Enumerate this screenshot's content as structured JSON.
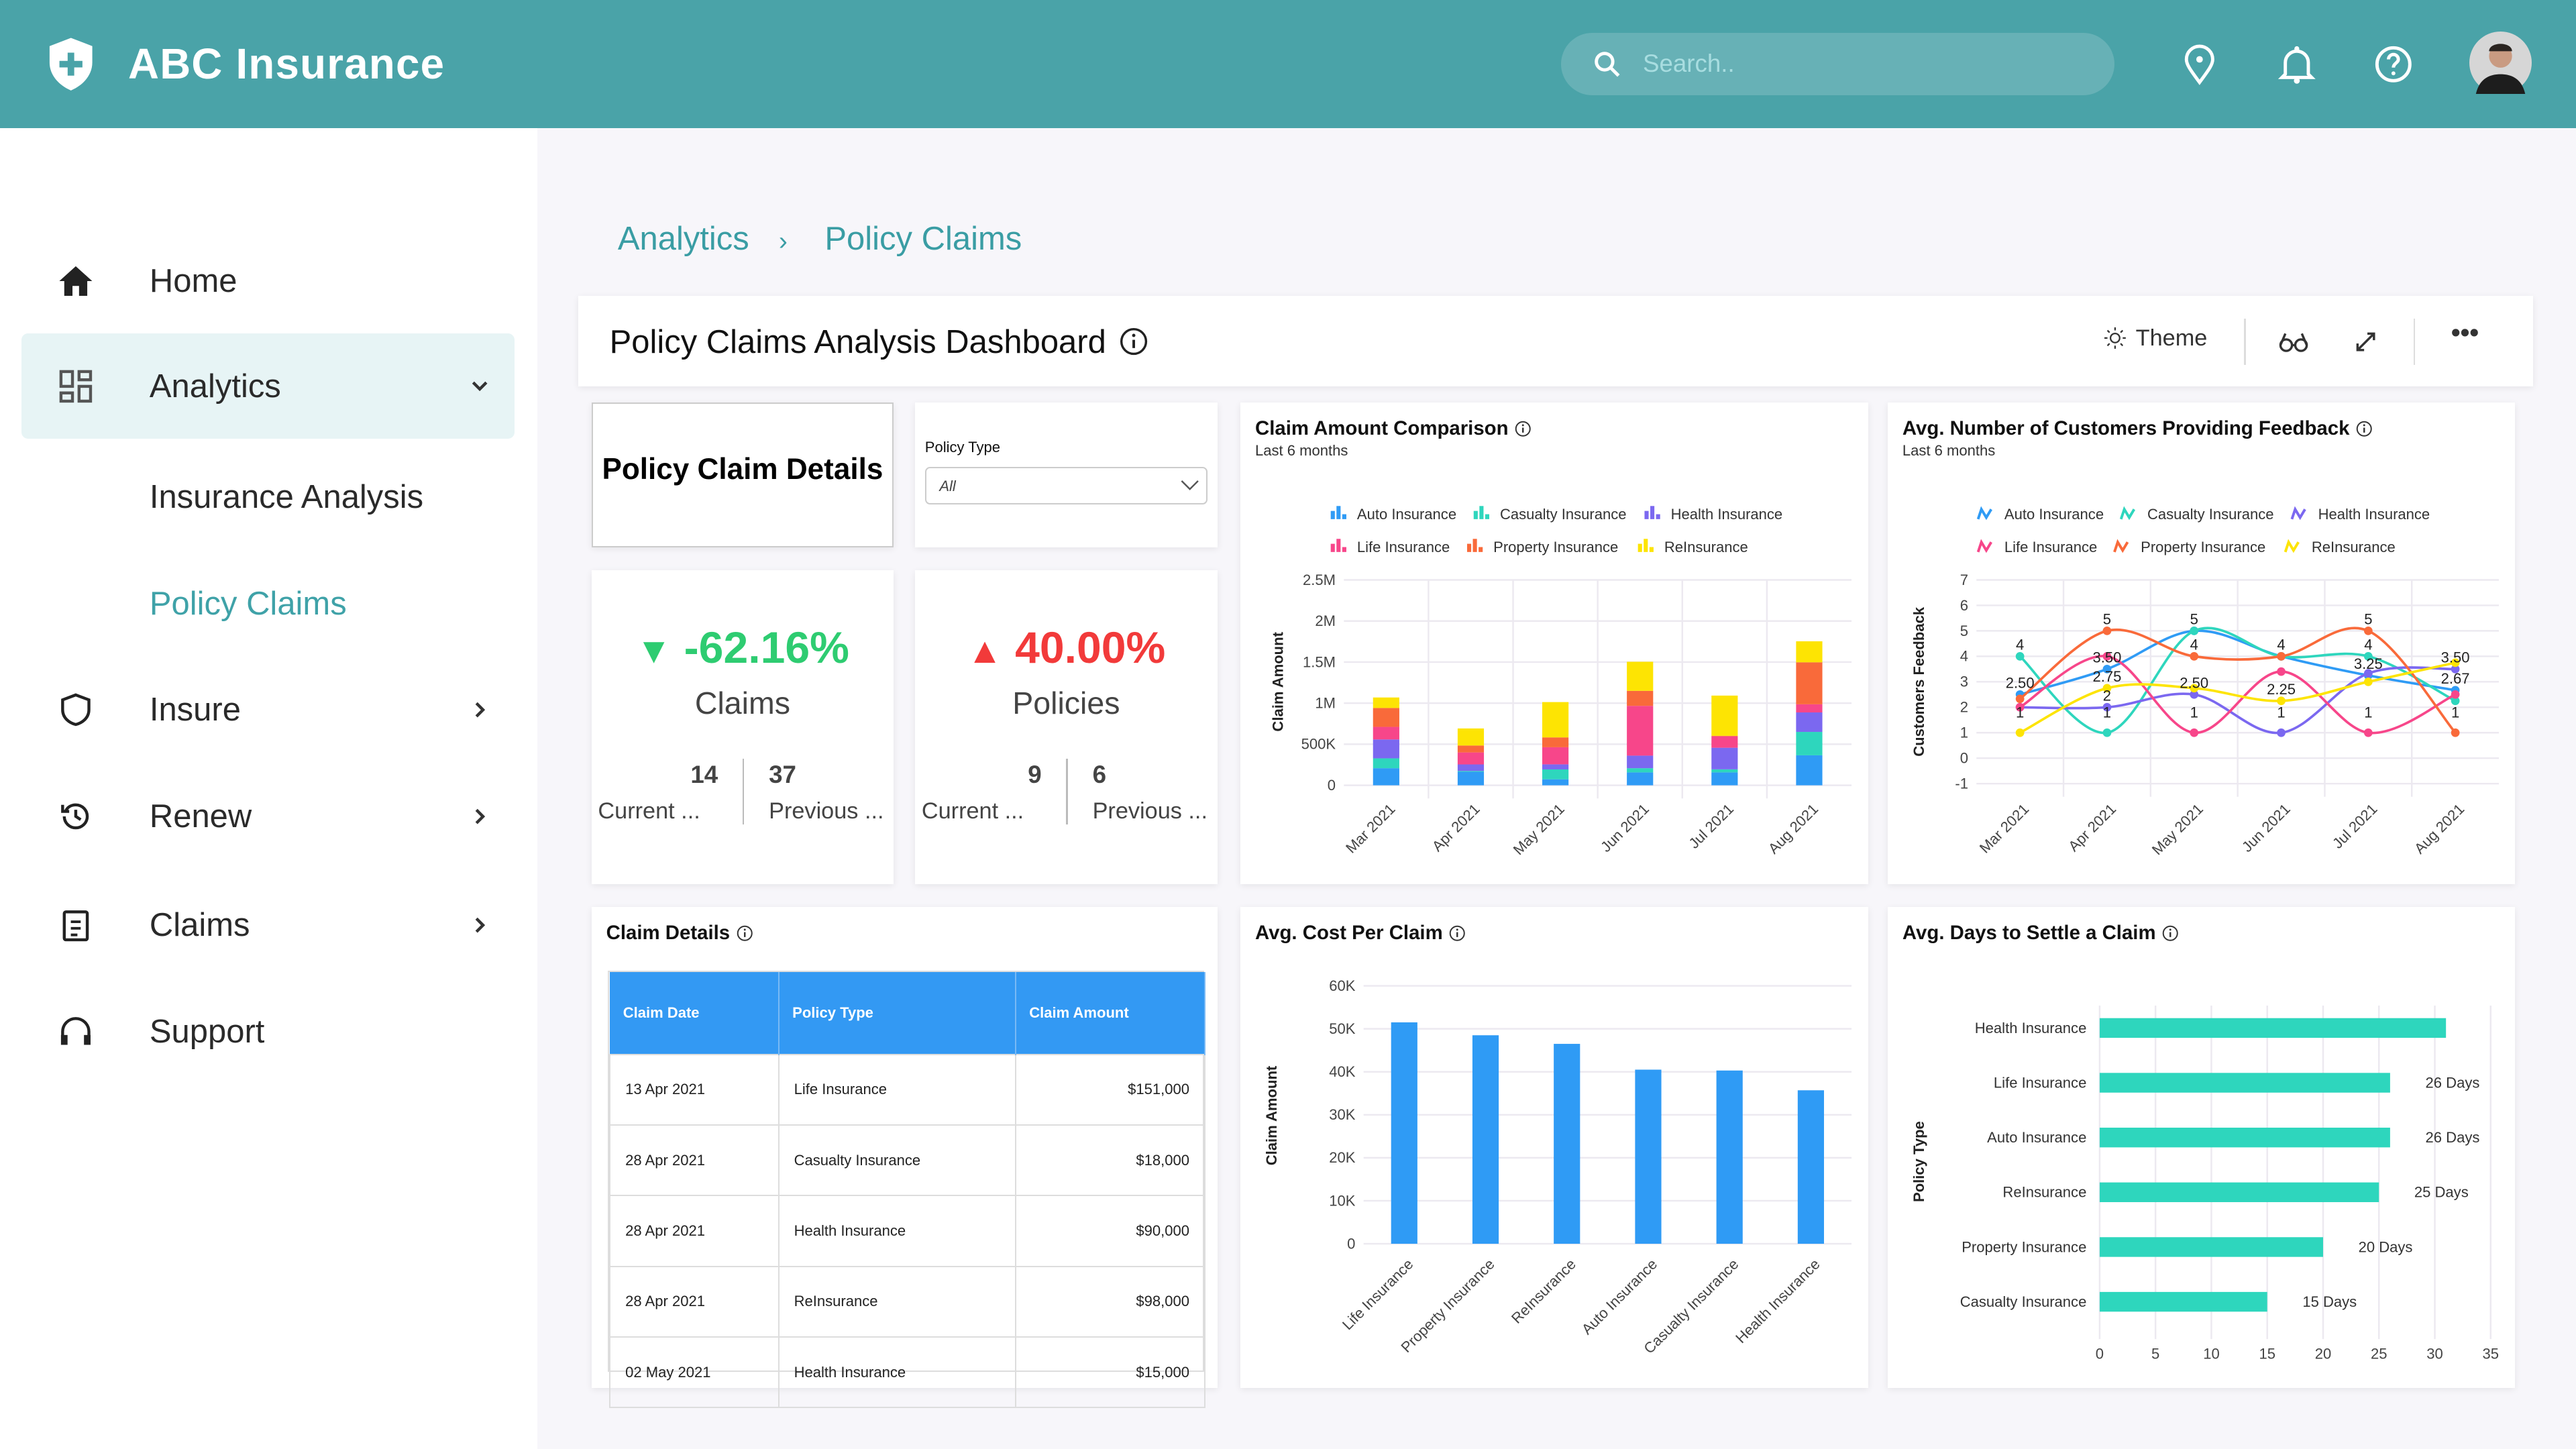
{
  "app": {
    "title": "ABC Insurance",
    "search_placeholder": "Search.."
  },
  "colors": {
    "header": "#4aa3a8",
    "accent": "#3fa2a8",
    "table_header": "#3399f3",
    "positive": "#2ecc71",
    "negative": "#f23a3a"
  },
  "header_icons": [
    "location-pin-icon",
    "bell-icon",
    "help-icon",
    "user-avatar"
  ],
  "sidebar": {
    "items": [
      {
        "label": "Home",
        "icon": "home-icon"
      },
      {
        "label": "Analytics",
        "icon": "dashboard-icon",
        "expanded": true,
        "children": [
          {
            "label": "Insurance Analysis"
          },
          {
            "label": "Policy Claims",
            "active": true
          }
        ]
      },
      {
        "label": "Insure",
        "icon": "shield-icon"
      },
      {
        "label": "Renew",
        "icon": "history-icon"
      },
      {
        "label": "Claims",
        "icon": "clipboard-icon"
      },
      {
        "label": "Support",
        "icon": "headset-icon"
      }
    ]
  },
  "breadcrumb": [
    "Analytics",
    "Policy Claims"
  ],
  "dashboard": {
    "title": "Policy Claims Analysis Dashboard",
    "theme_label": "Theme"
  },
  "widgets": {
    "details_title": "Policy Claim Details",
    "filter": {
      "label": "Policy Type",
      "value": "All"
    },
    "claims_kpi": {
      "value": "-62.16%",
      "direction": "down",
      "label": "Claims",
      "current": "14",
      "current_label": "Current ...",
      "previous": "37",
      "previous_label": "Previous ..."
    },
    "policies_kpi": {
      "value": "40.00%",
      "direction": "up",
      "label": "Policies",
      "current": "9",
      "current_label": "Current ...",
      "previous": "6",
      "previous_label": "Previous ..."
    },
    "table": {
      "title": "Claim Details",
      "columns": [
        "Claim Date",
        "Policy Type",
        "Claim Amount"
      ],
      "rows": [
        [
          "13 Apr 2021",
          "Life Insurance",
          "$151,000"
        ],
        [
          "28 Apr 2021",
          "Casualty Insurance",
          "$18,000"
        ],
        [
          "28 Apr 2021",
          "Health Insurance",
          "$90,000"
        ],
        [
          "28 Apr 2021",
          "ReInsurance",
          "$98,000"
        ],
        [
          "02 May 2021",
          "Health Insurance",
          "$15,000"
        ]
      ]
    }
  },
  "chart_data": [
    {
      "type": "bar",
      "stacked": true,
      "title": "Claim Amount Comparison",
      "subtitle": "Last 6 months",
      "ylabel": "Claim Amount",
      "ylim": [
        0,
        2500000
      ],
      "yticks": [
        "0",
        "500K",
        "1M",
        "1.5M",
        "2M",
        "2.5M"
      ],
      "grid": true,
      "legend": "top",
      "categories": [
        "Mar 2021",
        "Apr 2021",
        "May 2021",
        "Jun 2021",
        "Jul 2021",
        "Aug 2021"
      ],
      "series": [
        {
          "name": "Auto Insurance",
          "color": "#2f9bf5",
          "values": [
            208000,
            164000,
            73000,
            157000,
            157000,
            365000
          ]
        },
        {
          "name": "Casualty Insurance",
          "color": "#2ed6bd",
          "values": [
            120000,
            10000,
            120000,
            51000,
            37000,
            285000
          ]
        },
        {
          "name": "Health Insurance",
          "color": "#7b68f0",
          "values": [
            230000,
            80000,
            62000,
            153000,
            263000,
            237000
          ]
        },
        {
          "name": "Life Insurance",
          "color": "#f7468a",
          "values": [
            153000,
            146000,
            208000,
            606000,
            139000,
            99000
          ]
        },
        {
          "name": "Property Insurance",
          "color": "#f96a3a",
          "values": [
            230000,
            84000,
            120000,
            183000,
            7000,
            511000
          ]
        },
        {
          "name": "ReInsurance",
          "color": "#fde403",
          "values": [
            128000,
            208000,
            430000,
            354000,
            489000,
            256000
          ]
        }
      ]
    },
    {
      "type": "line",
      "smooth": true,
      "title": "Avg. Number of Customers Providing Feedback",
      "subtitle": "Last 6 months",
      "ylabel": "Customers Feedback",
      "ylim": [
        -1,
        7
      ],
      "yticks": [
        "-1",
        "0",
        "1",
        "2",
        "3",
        "4",
        "5",
        "6",
        "7"
      ],
      "grid": true,
      "legend": "top",
      "categories": [
        "Mar 2021",
        "Apr 2021",
        "May 2021",
        "Jun 2021",
        "Jul 2021",
        "Aug 2021"
      ],
      "series": [
        {
          "name": "Auto Insurance",
          "color": "#2f9bf5",
          "values": [
            2.5,
            3.5,
            5,
            4,
            3.25,
            2.67
          ]
        },
        {
          "name": "Casualty Insurance",
          "color": "#2ed6bd",
          "values": [
            4,
            1,
            5,
            4,
            4,
            2.25
          ]
        },
        {
          "name": "Health Insurance",
          "color": "#7b68f0",
          "values": [
            2,
            2,
            2.5,
            1,
            3.33,
            3.5
          ]
        },
        {
          "name": "Life Insurance",
          "color": "#f7468a",
          "values": [
            2,
            4,
            1,
            3.4,
            1,
            2.5
          ]
        },
        {
          "name": "Property Insurance",
          "color": "#f96a3a",
          "values": [
            2.33,
            5,
            4,
            4,
            5,
            1
          ]
        },
        {
          "name": "ReInsurance",
          "color": "#fde403",
          "values": [
            1,
            2.75,
            2.75,
            2.25,
            3,
            3.75
          ]
        }
      ],
      "data_labels": [
        [
          "4",
          "2.50",
          "1"
        ],
        [
          "5",
          "3.50",
          "2.75",
          "2",
          "1"
        ],
        [
          "5",
          "4",
          "2.50",
          "1"
        ],
        [
          "4",
          "2.25",
          "1"
        ],
        [
          "5",
          "4",
          "3.25",
          "1"
        ],
        [
          "3.50",
          "2.67",
          "1"
        ]
      ]
    },
    {
      "type": "bar",
      "title": "Avg. Cost Per Claim",
      "ylabel": "Claim Amount",
      "ylim": [
        0,
        60000
      ],
      "yticks": [
        "0",
        "10K",
        "20K",
        "30K",
        "40K",
        "50K",
        "60K"
      ],
      "grid": true,
      "color": "#2f9bf5",
      "categories": [
        "Life Insurance",
        "Property Insurance",
        "ReInsurance",
        "Auto Insurance",
        "Casualty Insurance",
        "Health Insurance"
      ],
      "values": [
        51500,
        48500,
        46500,
        40500,
        40300,
        35700
      ]
    },
    {
      "type": "bar",
      "orientation": "horizontal",
      "title": "Avg. Days to Settle a Claim",
      "ylabel": "Policy Type",
      "xlim": [
        0,
        35
      ],
      "xticks": [
        "0",
        "5",
        "10",
        "15",
        "20",
        "25",
        "30",
        "35"
      ],
      "grid": true,
      "color": "#2ed6bd",
      "categories": [
        "Health Insurance",
        "Life Insurance",
        "Auto Insurance",
        "ReInsurance",
        "Property Insurance",
        "Casualty Insurance"
      ],
      "values": [
        31,
        26,
        26,
        25,
        20,
        15
      ],
      "data_labels": [
        "",
        "26 Days",
        "26 Days",
        "25 Days",
        "20 Days",
        "15 Days"
      ]
    }
  ]
}
